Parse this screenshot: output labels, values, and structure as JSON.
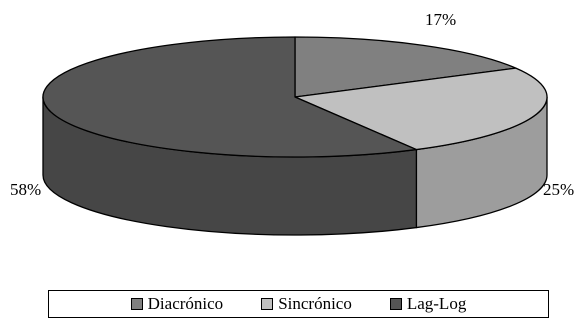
{
  "chart_data": {
    "type": "pie",
    "title": "",
    "categories": [
      "Diacrónico",
      "Sincrónico",
      "Lag-Log"
    ],
    "values": [
      17,
      25,
      58
    ],
    "labels": [
      "17%",
      "25%",
      "58%"
    ],
    "colors": [
      "#808080",
      "#c0c0c0",
      "#555555"
    ],
    "three_d": true,
    "legend_position": "bottom"
  }
}
